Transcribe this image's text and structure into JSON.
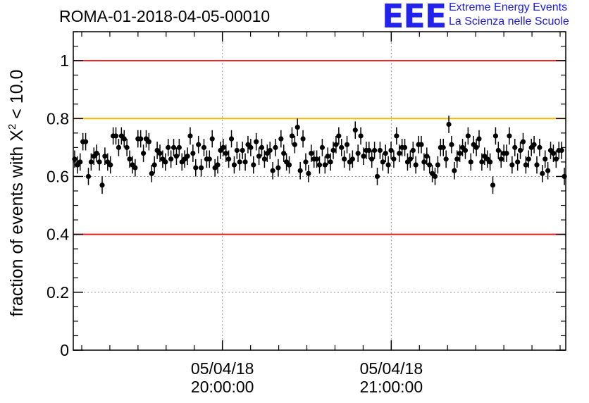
{
  "title": "ROMA-01-2018-04-05-00010",
  "logo": {
    "mark": "EEE",
    "line1": "Extreme Energy Events",
    "line2": "La Scienza nelle Scuole"
  },
  "chart_data": {
    "type": "scatter",
    "ylabel_prefix": "fraction of events with ",
    "ylabel_symbol": "X",
    "ylabel_sup": "2",
    "ylabel_suffix": " < 10.0",
    "ylim": [
      0,
      1.1
    ],
    "yticks": [
      0,
      0.2,
      0.4,
      0.6,
      0.8,
      1
    ],
    "ytick_labels": [
      "0",
      "0.2",
      "0.4",
      "0.6",
      "0.8",
      "1"
    ],
    "x_start": "05/04/18 19:07:00",
    "x_end": "05/04/18 22:02:00",
    "xticks": [
      {
        "date": "05/04/18",
        "time": "20:00:00"
      },
      {
        "date": "05/04/18",
        "time": "21:00:00"
      }
    ],
    "grid": true,
    "reference_lines": [
      {
        "y": 1.0,
        "color": "#e41a1c"
      },
      {
        "y": 0.8,
        "color": "#f5b800"
      },
      {
        "y": 0.4,
        "color": "#e41a1c"
      }
    ],
    "error": 0.03,
    "values": [
      0.66,
      0.64,
      0.65,
      0.72,
      0.72,
      0.6,
      0.65,
      0.67,
      0.68,
      0.65,
      0.57,
      0.67,
      0.65,
      0.64,
      0.74,
      0.74,
      0.7,
      0.74,
      0.73,
      0.7,
      0.66,
      0.64,
      0.63,
      0.73,
      0.73,
      0.68,
      0.73,
      0.72,
      0.61,
      0.64,
      0.69,
      0.68,
      0.66,
      0.65,
      0.7,
      0.66,
      0.7,
      0.67,
      0.7,
      0.65,
      0.66,
      0.67,
      0.74,
      0.68,
      0.63,
      0.71,
      0.63,
      0.7,
      0.66,
      0.66,
      0.73,
      0.63,
      0.64,
      0.69,
      0.7,
      0.68,
      0.66,
      0.73,
      0.64,
      0.69,
      0.65,
      0.69,
      0.65,
      0.71,
      0.7,
      0.64,
      0.72,
      0.67,
      0.7,
      0.66,
      0.68,
      0.69,
      0.62,
      0.7,
      0.63,
      0.73,
      0.68,
      0.65,
      0.64,
      0.74,
      0.71,
      0.77,
      0.62,
      0.73,
      0.65,
      0.61,
      0.68,
      0.66,
      0.66,
      0.64,
      0.7,
      0.64,
      0.67,
      0.65,
      0.69,
      0.71,
      0.74,
      0.7,
      0.66,
      0.71,
      0.65,
      0.66,
      0.76,
      0.68,
      0.74,
      0.67,
      0.69,
      0.69,
      0.66,
      0.69,
      0.6,
      0.69,
      0.65,
      0.68,
      0.64,
      0.69,
      0.66,
      0.74,
      0.68,
      0.7,
      0.7,
      0.65,
      0.66,
      0.69,
      0.64,
      0.71,
      0.71,
      0.65,
      0.67,
      0.64,
      0.61,
      0.6,
      0.64,
      0.7,
      0.7,
      0.66,
      0.78,
      0.71,
      0.62,
      0.66,
      0.68,
      0.7,
      0.69,
      0.74,
      0.65,
      0.71,
      0.7,
      0.73,
      0.65,
      0.67,
      0.66,
      0.65,
      0.57,
      0.74,
      0.69,
      0.66,
      0.68,
      0.68,
      0.74,
      0.64,
      0.7,
      0.65,
      0.69,
      0.72,
      0.64,
      0.66,
      0.7,
      0.71,
      0.64,
      0.7,
      0.61,
      0.66,
      0.62,
      0.69,
      0.68,
      0.66,
      0.69,
      0.69,
      0.6
    ]
  }
}
